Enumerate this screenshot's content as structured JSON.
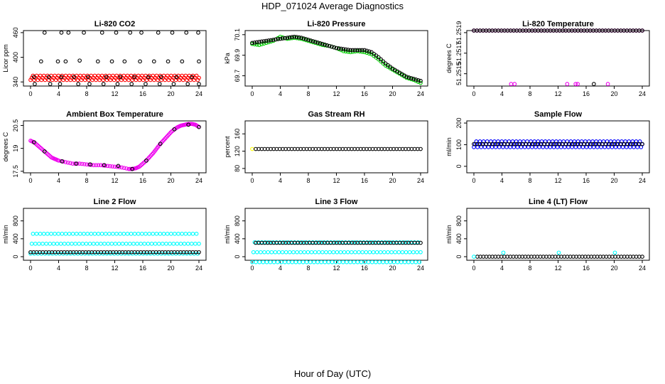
{
  "figure": {
    "title": "HDP_071024  Average Diagnostics",
    "xlabel": "Hour of Day (UTC)"
  },
  "colors": {
    "black": "#000000",
    "red": "#ff0000",
    "green": "#00cc00",
    "magenta": "#ee00ee",
    "yellow": "#ffff00",
    "blue": "#0000ff",
    "cyan": "#00ffff"
  },
  "chart_data": [
    {
      "id": "li820-co2",
      "type": "scatter",
      "title": "Li-820 CO2",
      "ylabel": "Licor ppm",
      "xlim": [
        0,
        24
      ],
      "ylim": [
        330,
        465
      ],
      "xticks": [
        0,
        4,
        8,
        12,
        16,
        20,
        24
      ],
      "yticks": [
        340,
        400,
        460
      ],
      "series": [
        {
          "name": "continuous",
          "color": "red",
          "style": "band",
          "x_range": [
            0,
            24
          ],
          "y": 350,
          "spread": 3
        },
        {
          "name": "cycle-1",
          "color": "black",
          "x": [
            2,
            4.4,
            5.4,
            7.6,
            10.2,
            12.2,
            14.2,
            15.8,
            18.2,
            20.2,
            22.2,
            23.9
          ],
          "y": [
            460,
            460,
            460,
            460,
            460,
            460,
            460,
            460,
            460,
            460,
            460,
            460
          ]
        },
        {
          "name": "cycle-2",
          "color": "black",
          "x": [
            1.5,
            3.9,
            5,
            7,
            9.6,
            11.6,
            13.4,
            15.6,
            17.6,
            19.6,
            21.6,
            24
          ],
          "y": [
            390,
            390,
            390,
            392,
            390,
            390,
            390,
            390,
            390,
            390,
            390,
            390
          ]
        },
        {
          "name": "cycle-3",
          "color": "black",
          "x": [
            0.5,
            2.6,
            4.4,
            6.2,
            8.2,
            10.8,
            12.8,
            14.8,
            16.8,
            18.6,
            20.8,
            23
          ],
          "y": [
            352,
            352,
            352,
            352,
            352,
            352,
            352,
            352,
            352,
            352,
            352,
            352
          ]
        },
        {
          "name": "cycle-4",
          "color": "black",
          "x": [
            0.6,
            2.8,
            4.2,
            6.8,
            8.4,
            10.4,
            12.4,
            14.4,
            16.4,
            18.4,
            20.4,
            22.4,
            24
          ],
          "y": [
            335,
            335,
            335,
            335,
            335,
            335,
            335,
            335,
            335,
            335,
            335,
            335,
            335
          ]
        }
      ]
    },
    {
      "id": "li820-pressure",
      "type": "scatter",
      "title": "Li-820 Pressure",
      "ylabel": "kPa",
      "xlim": [
        0,
        24
      ],
      "ylim": [
        69.6,
        70.14
      ],
      "xticks": [
        0,
        4,
        8,
        12,
        16,
        20,
        24
      ],
      "yticks": [
        69.7,
        69.9,
        70.1
      ],
      "series": [
        {
          "name": "pressure-green",
          "color": "green",
          "x": [
            0,
            1,
            2,
            3,
            4,
            5,
            6,
            7,
            8,
            9,
            10,
            11,
            12,
            13,
            14,
            15,
            16,
            17,
            18,
            19,
            20,
            21,
            22,
            23,
            24
          ],
          "y": [
            70.01,
            70.0,
            70.02,
            70.04,
            70.08,
            70.06,
            70.07,
            70.06,
            70.04,
            70.02,
            70.0,
            69.99,
            69.97,
            69.94,
            69.93,
            69.94,
            69.93,
            69.91,
            69.86,
            69.8,
            69.76,
            69.72,
            69.68,
            69.66,
            69.63
          ]
        },
        {
          "name": "pressure-black",
          "color": "black",
          "x": [
            0,
            1,
            2,
            3,
            4,
            5,
            6,
            7,
            8,
            9,
            10,
            11,
            12,
            13,
            14,
            15,
            16,
            17,
            18,
            19,
            20,
            21,
            22,
            23,
            24
          ],
          "y": [
            70.02,
            70.03,
            70.04,
            70.05,
            70.06,
            70.07,
            70.08,
            70.07,
            70.05,
            70.03,
            70.01,
            69.99,
            69.97,
            69.96,
            69.95,
            69.95,
            69.95,
            69.93,
            69.88,
            69.82,
            69.77,
            69.73,
            69.69,
            69.67,
            69.65
          ]
        }
      ]
    },
    {
      "id": "li820-temperature",
      "type": "scatter",
      "title": "Li-820 Temperature",
      "ylabel": "degrees C",
      "xlim": [
        0,
        24
      ],
      "ylim": [
        51.25138,
        51.25192
      ],
      "xticks": [
        0,
        4,
        8,
        12,
        16,
        20,
        24
      ],
      "yticks": [
        51.2515,
        51.2517,
        51.2519
      ],
      "ytick_labels": [
        "51.2515",
        "51.2517",
        "51.2519"
      ],
      "series": [
        {
          "name": "temp-magenta",
          "color": "magenta",
          "style": "row",
          "x_range": [
            0,
            24
          ],
          "y": 51.25192,
          "x_extra": [
            5.3,
            5.8,
            13.3,
            14.5,
            14.8,
            19.1
          ],
          "y_extra": [
            51.2514,
            51.2514,
            51.2514,
            51.2514,
            51.2514,
            51.2514
          ]
        },
        {
          "name": "temp-black",
          "color": "black",
          "style": "row",
          "x_range": [
            0,
            24
          ],
          "y": 51.25192,
          "x_extra": [
            17.1
          ],
          "y_extra": [
            51.2514
          ]
        }
      ]
    },
    {
      "id": "ambient-box-temperature",
      "type": "scatter",
      "title": "Ambient Box Temperature",
      "ylabel": "degrees C",
      "xlim": [
        0,
        24
      ],
      "ylim": [
        17.4,
        20.8
      ],
      "xticks": [
        0,
        4,
        8,
        12,
        16,
        20,
        24
      ],
      "yticks": [
        17.5,
        19.0,
        20.5
      ],
      "series": [
        {
          "name": "ambient-magenta",
          "color": "magenta",
          "x": [
            0,
            0.5,
            1,
            1.5,
            2,
            2.5,
            3,
            3.5,
            4,
            5,
            6,
            7,
            8,
            9,
            10,
            11,
            12,
            13,
            14,
            14.5,
            15,
            15.5,
            16,
            16.5,
            17,
            17.5,
            18,
            18.5,
            19,
            19.5,
            20,
            20.5,
            21,
            21.5,
            22,
            22.5,
            23,
            23.5,
            24
          ],
          "y": [
            19.5,
            19.4,
            19.2,
            19.0,
            18.8,
            18.6,
            18.4,
            18.3,
            18.2,
            18.1,
            18.0,
            18.0,
            17.95,
            17.9,
            17.9,
            17.85,
            17.8,
            17.75,
            17.65,
            17.65,
            17.7,
            17.8,
            18.0,
            18.2,
            18.45,
            18.7,
            19.0,
            19.3,
            19.55,
            19.8,
            20.05,
            20.25,
            20.4,
            20.5,
            20.55,
            20.6,
            20.6,
            20.55,
            20.4
          ]
        },
        {
          "name": "ambient-black",
          "color": "black",
          "x": [
            0.5,
            2,
            4.5,
            6.5,
            8.5,
            10.5,
            12.5,
            14.5,
            16.5,
            18.5,
            20.5,
            22.5,
            24
          ],
          "y": [
            19.4,
            18.8,
            18.15,
            18.0,
            17.95,
            17.9,
            17.85,
            17.65,
            18.2,
            19.3,
            20.25,
            20.55,
            20.4
          ]
        }
      ]
    },
    {
      "id": "gas-stream-rh",
      "type": "scatter",
      "title": "Gas Stream RH",
      "ylabel": "percent",
      "xlim": [
        0,
        24
      ],
      "ylim": [
        70,
        190
      ],
      "xticks": [
        0,
        4,
        8,
        12,
        16,
        20,
        24
      ],
      "yticks": [
        80,
        120,
        160
      ],
      "series": [
        {
          "name": "rh-yellow",
          "color": "yellow",
          "x": [
            0
          ],
          "y": [
            125
          ]
        },
        {
          "name": "rh-black",
          "color": "black",
          "style": "row",
          "x_range": [
            0.5,
            24
          ],
          "y": 125
        }
      ]
    },
    {
      "id": "sample-flow",
      "type": "scatter",
      "title": "Sample Flow",
      "ylabel": "ml/min",
      "xlim": [
        0,
        24
      ],
      "ylim": [
        -30,
        210
      ],
      "xticks": [
        0,
        4,
        8,
        12,
        16,
        20,
        24
      ],
      "yticks": [
        0,
        100,
        200
      ],
      "series": [
        {
          "name": "flow-blue",
          "color": "blue",
          "style": "band",
          "x_range": [
            0,
            24
          ],
          "y": 102,
          "spread": 4
        },
        {
          "name": "flow-black",
          "color": "black",
          "style": "row",
          "x_range": [
            0,
            24
          ],
          "y": 103
        }
      ]
    },
    {
      "id": "line-2-flow",
      "type": "scatter",
      "title": "Line 2 Flow",
      "ylabel": "ml/min",
      "xlim": [
        0,
        24
      ],
      "ylim": [
        -80,
        1080
      ],
      "xticks": [
        0,
        4,
        8,
        12,
        16,
        20,
        24
      ],
      "yticks": [
        0,
        400,
        800
      ],
      "series": [
        {
          "name": "line2-cyan",
          "color": "cyan",
          "style": "band",
          "x_range": [
            0,
            24
          ],
          "y": 290,
          "spread": 14
        },
        {
          "name": "line2-black",
          "color": "black",
          "style": "row",
          "x_range": [
            0,
            24
          ],
          "y": 100
        }
      ]
    },
    {
      "id": "line-3-flow",
      "type": "scatter",
      "title": "Line 3 Flow",
      "ylabel": "ml/min",
      "xlim": [
        0,
        24
      ],
      "ylim": [
        -80,
        1080
      ],
      "xticks": [
        0,
        4,
        8,
        12,
        16,
        20,
        24
      ],
      "yticks": [
        0,
        400,
        800
      ],
      "series": [
        {
          "name": "line3-cyan",
          "color": "cyan",
          "style": "band",
          "x_range": [
            0,
            24
          ],
          "y": 100,
          "spread": 14
        },
        {
          "name": "line3-black",
          "color": "black",
          "style": "row",
          "x_range": [
            0.5,
            24
          ],
          "y": 310
        }
      ]
    },
    {
      "id": "line-4-lt-flow",
      "type": "scatter",
      "title": "Line 4 (LT) Flow",
      "ylabel": "ml/min",
      "xlim": [
        0,
        24
      ],
      "ylim": [
        -80,
        1080
      ],
      "xticks": [
        0,
        4,
        8,
        12,
        16,
        20,
        24
      ],
      "yticks": [
        0,
        400,
        800
      ],
      "series": [
        {
          "name": "line4-black",
          "color": "black",
          "style": "row",
          "x_range": [
            0.5,
            24
          ],
          "y": 0
        },
        {
          "name": "line4-cyan",
          "color": "cyan",
          "x": [
            0,
            4.2,
            12.1,
            20.1
          ],
          "y": [
            0,
            90,
            90,
            90
          ]
        }
      ]
    }
  ]
}
